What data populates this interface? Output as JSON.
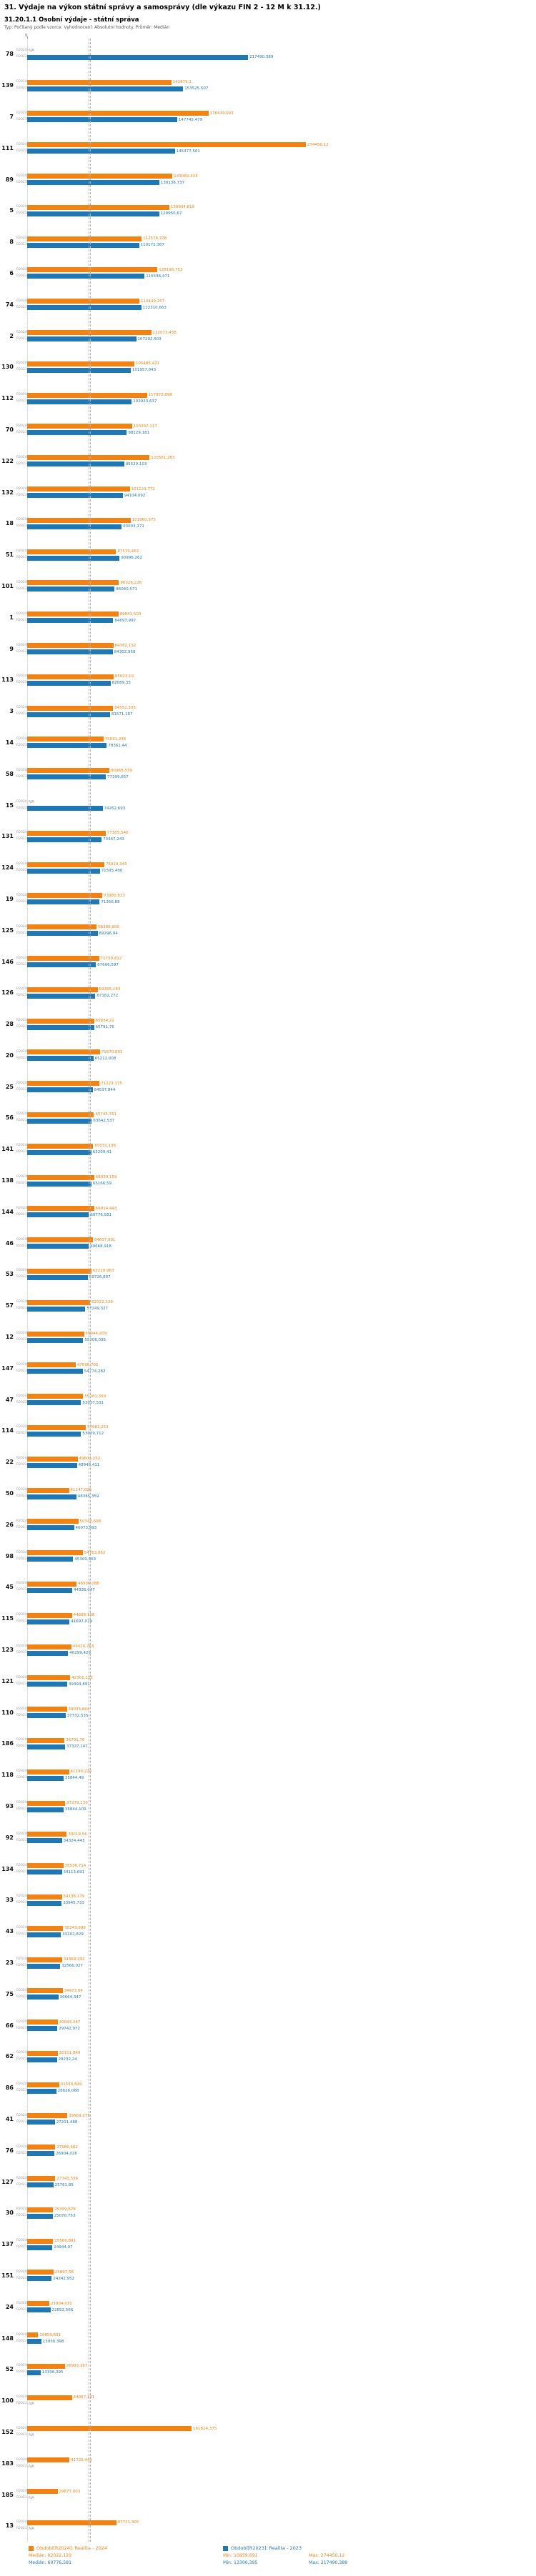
{
  "title": "31. Výdaje na výkon státní správy a samosprávy (dle výkazu FIN 2 - 12 M k 31.12.)",
  "subtitle": "31.20.1.1 Osobní výdaje - státní správa",
  "meta": "Typ: Počítaný podle vzorce. Vyhodnocení: Absolutní hodnoty. Průměr: Medián",
  "colors": {
    "r2024": "#f28211",
    "r2023": "#1f77b4",
    "median_line": "#b3b3b3",
    "na_text": "#999999"
  },
  "series_labels": {
    "r2024": "R2024",
    "r2023": "R2023"
  },
  "axis": {
    "zero_label": "0"
  },
  "legend": {
    "r2024": {
      "label": "Období[R2024]: Realita - 2024",
      "median": "Medián: 62022,129",
      "min": "Min: 10859,691",
      "max": "Max: 274450,12"
    },
    "r2023": {
      "label": "Období[R2023]: Realita - 2023",
      "median": "Medián: 60776,581",
      "min": "Min: 13306,395",
      "max": "Max: 217490,389"
    }
  },
  "chart_data": {
    "type": "bar",
    "orientation": "horizontal",
    "series": [
      "R2024",
      "R2023"
    ],
    "xmax": 274450.12,
    "x_start": 0,
    "median_r2024": 62022.129,
    "median_r2023": 60776.581,
    "na_label": "NA",
    "columns": [
      "id",
      "R2024",
      "R2023"
    ],
    "rows": [
      [
        "78",
        null,
        217490.389
      ],
      [
        "139",
        141879.1,
        153525.507
      ],
      [
        "7",
        178419.993,
        147745.479
      ],
      [
        "111",
        274450.12,
        145477.561
      ],
      [
        "89",
        143069.333,
        130136.737
      ],
      [
        "5",
        139934.819,
        129950.67
      ],
      [
        "8",
        112578.708,
        110172.367
      ],
      [
        "6",
        128198.753,
        115536.471
      ],
      [
        "74",
        110449.257,
        112310.663
      ],
      [
        "2",
        122073.438,
        107292.503
      ],
      [
        "130",
        105485.421,
        101957.043
      ],
      [
        "112",
        117972.898,
        102923.637
      ],
      [
        "70",
        103237.117,
        98129.181
      ],
      [
        "122",
        120581.283,
        95529.103
      ],
      [
        "132",
        101123.772,
        94104.092
      ],
      [
        "18",
        101860.575,
        93003.171
      ],
      [
        "51",
        87570.463,
        90996.262
      ],
      [
        "101",
        90328.228,
        86060.571
      ],
      [
        "1",
        89841.503,
        84697.997
      ],
      [
        "9",
        84782.132,
        84302.958
      ],
      [
        "113",
        85023.19,
        82089.35
      ],
      [
        "3",
        84552.335,
        81571.107
      ],
      [
        "14",
        75031.236,
        78361.44
      ],
      [
        "58",
        80968.539,
        77399.657
      ],
      [
        "15",
        null,
        74262.693
      ],
      [
        "131",
        77305.546,
        73347.243
      ],
      [
        "124",
        75919.345,
        71595.406
      ],
      [
        "19",
        73980.813,
        71356.88
      ],
      [
        "125",
        68386.906,
        69296.94
      ],
      [
        "146",
        70759.812,
        67606.597
      ],
      [
        "126",
        69366.183,
        67162.272
      ],
      [
        "28",
        65934.22,
        65791.76
      ],
      [
        "20",
        71670.892,
        65212.008
      ],
      [
        "25",
        71223.175,
        64537.844
      ],
      [
        "56",
        65745.761,
        63642.537
      ],
      [
        "141",
        65031.196,
        63209.41
      ],
      [
        "138",
        66039.159,
        63166.59
      ],
      [
        "144",
        66014.443,
        60776.581
      ],
      [
        "46",
        64607.901,
        60668.918
      ],
      [
        "53",
        63220.963,
        59726.897
      ],
      [
        "57",
        62022.129,
        57249.327
      ],
      [
        "12",
        55944.209,
        55206.095
      ],
      [
        "147",
        47696.705,
        54774.282
      ],
      [
        "47",
        55181.359,
        53057.531
      ],
      [
        "114",
        57683.253,
        53029.712
      ],
      [
        "22",
        49603.252,
        48948.411
      ],
      [
        "50",
        41147.026,
        48385.359
      ],
      [
        "26",
        50345.698,
        46073.993
      ],
      [
        "98",
        54763.862,
        45300.463
      ],
      [
        "45",
        48536.088,
        44336.047
      ],
      [
        "115",
        44028.168,
        41697.079
      ],
      [
        "123",
        43420.763,
        40299.429
      ],
      [
        "121",
        42301.122,
        39394.891
      ],
      [
        "110",
        39033.664,
        37732.535
      ],
      [
        "186",
        36791.76,
        37327.147
      ],
      [
        "118",
        41199.224,
        35844.49
      ],
      [
        "93",
        37279.239,
        35844.109
      ],
      [
        "92",
        39019.56,
        34324.443
      ],
      [
        "134",
        35536.714,
        34113.691
      ],
      [
        "33",
        34138.179,
        33945.733
      ],
      [
        "43",
        35243.998,
        33202.829
      ],
      [
        "23",
        34369.292,
        32566.027
      ],
      [
        "75",
        34973.04,
        30664.347
      ],
      [
        "66",
        30043.247,
        29742.972
      ],
      [
        "62",
        30101.849,
        29232.24
      ],
      [
        "86",
        31553.849,
        28626.068
      ],
      [
        "41",
        39569.278,
        27201.488
      ],
      [
        "76",
        27586.662,
        26904.026
      ],
      [
        "127",
        27743.556,
        25761.85
      ],
      [
        "30",
        25399.678,
        25070.753
      ],
      [
        "137",
        25566.891,
        24944.97
      ],
      [
        "151",
        25897.56,
        24242.952
      ],
      [
        "24",
        21934.031,
        22852.566
      ],
      [
        "148",
        10859.691,
        13930.398
      ],
      [
        "52",
        36993.367,
        13306.395
      ],
      [
        "100",
        44067.131,
        null
      ],
      [
        "152",
        161824.375,
        null
      ],
      [
        "183",
        41725.441,
        null
      ],
      [
        "185",
        29877.903,
        null
      ],
      [
        "13",
        87721.305,
        null
      ]
    ]
  }
}
